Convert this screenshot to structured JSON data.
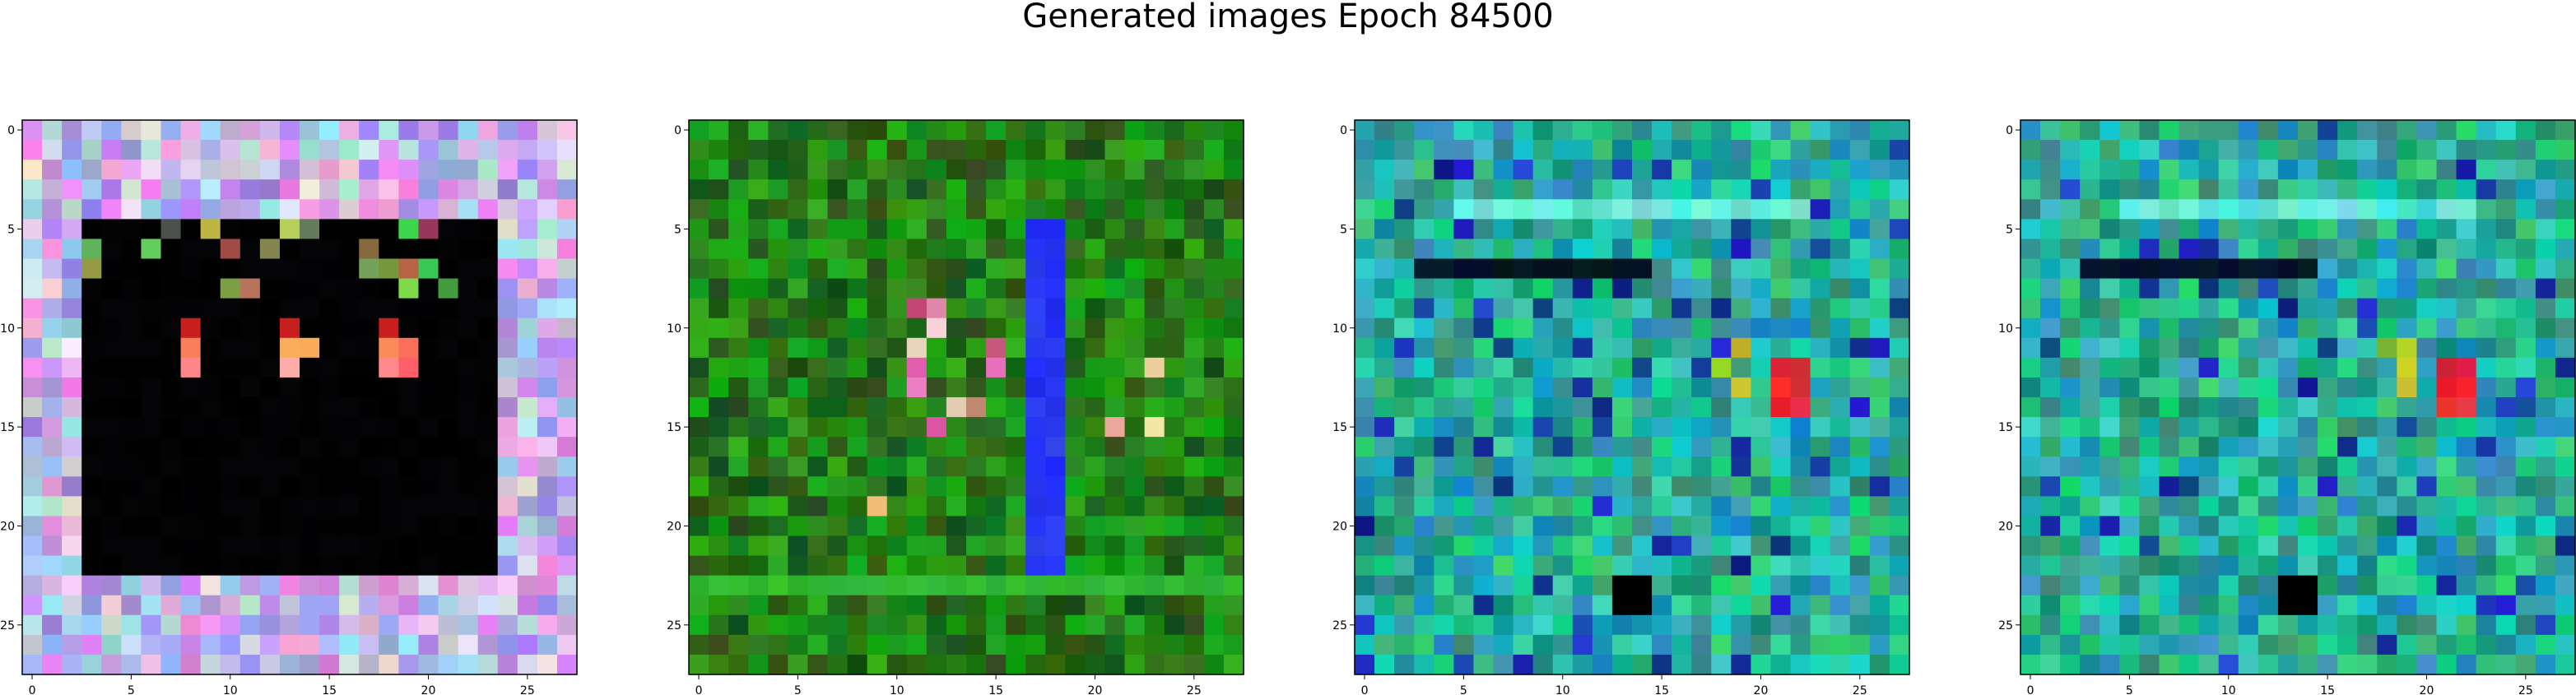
{
  "figure": {
    "title": "Generated images Epoch 84500"
  },
  "chart_data": [
    {
      "type": "heatmap",
      "xticks": [
        "0",
        "5",
        "10",
        "15",
        "20",
        "25"
      ],
      "yticks": [
        "0",
        "5",
        "10",
        "15",
        "20",
        "25"
      ],
      "xlim": [
        -0.5,
        27.5
      ],
      "ylim": [
        27.5,
        -0.5
      ],
      "grid": false,
      "palette": "lavender-border-black-center"
    },
    {
      "type": "heatmap",
      "xticks": [
        "0",
        "5",
        "10",
        "15",
        "20",
        "25"
      ],
      "yticks": [
        "0",
        "5",
        "10",
        "15",
        "20",
        "25"
      ],
      "xlim": [
        -0.5,
        27.5
      ],
      "ylim": [
        27.5,
        -0.5
      ],
      "grid": false,
      "palette": "green-with-blue-stripe"
    },
    {
      "type": "heatmap",
      "xticks": [
        "0",
        "5",
        "10",
        "15",
        "20",
        "25"
      ],
      "yticks": [
        "0",
        "5",
        "10",
        "15",
        "20",
        "25"
      ],
      "xlim": [
        -0.5,
        27.5
      ],
      "ylim": [
        27.5,
        -0.5
      ],
      "grid": false,
      "palette": "teal-noise"
    },
    {
      "type": "heatmap",
      "xticks": [
        "0",
        "5",
        "10",
        "15",
        "20",
        "25"
      ],
      "yticks": [
        "0",
        "5",
        "10",
        "15",
        "20",
        "25"
      ],
      "xlim": [
        -0.5,
        27.5
      ],
      "ylim": [
        27.5,
        -0.5
      ],
      "grid": false,
      "palette": "teal-noise"
    }
  ]
}
